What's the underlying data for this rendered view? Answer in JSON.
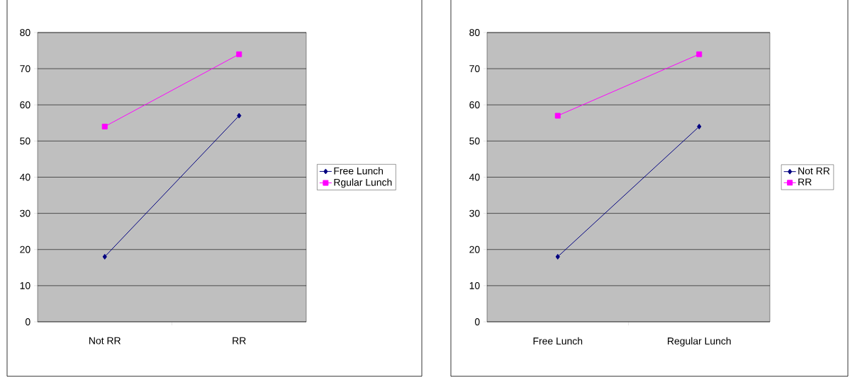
{
  "chart_data": [
    {
      "type": "line",
      "categories": [
        "Not RR",
        "RR"
      ],
      "ylim": [
        0,
        80
      ],
      "yticks": [
        0,
        10,
        20,
        30,
        40,
        50,
        60,
        70,
        80
      ],
      "grid": "y",
      "legend": "right",
      "series": [
        {
          "name": "Free Lunch",
          "color": "#000080",
          "marker": "diamond",
          "values": [
            18,
            57
          ]
        },
        {
          "name": "Rgular Lunch",
          "color": "#ff00ff",
          "marker": "square",
          "values": [
            54,
            74
          ]
        }
      ]
    },
    {
      "type": "line",
      "categories": [
        "Free Lunch",
        "Regular Lunch"
      ],
      "ylim": [
        0,
        80
      ],
      "yticks": [
        0,
        10,
        20,
        30,
        40,
        50,
        60,
        70,
        80
      ],
      "grid": "y",
      "legend": "right",
      "series": [
        {
          "name": "Not RR",
          "color": "#000080",
          "marker": "diamond",
          "values": [
            18,
            54
          ]
        },
        {
          "name": "RR",
          "color": "#ff00ff",
          "marker": "square",
          "values": [
            57,
            74
          ]
        }
      ]
    }
  ]
}
